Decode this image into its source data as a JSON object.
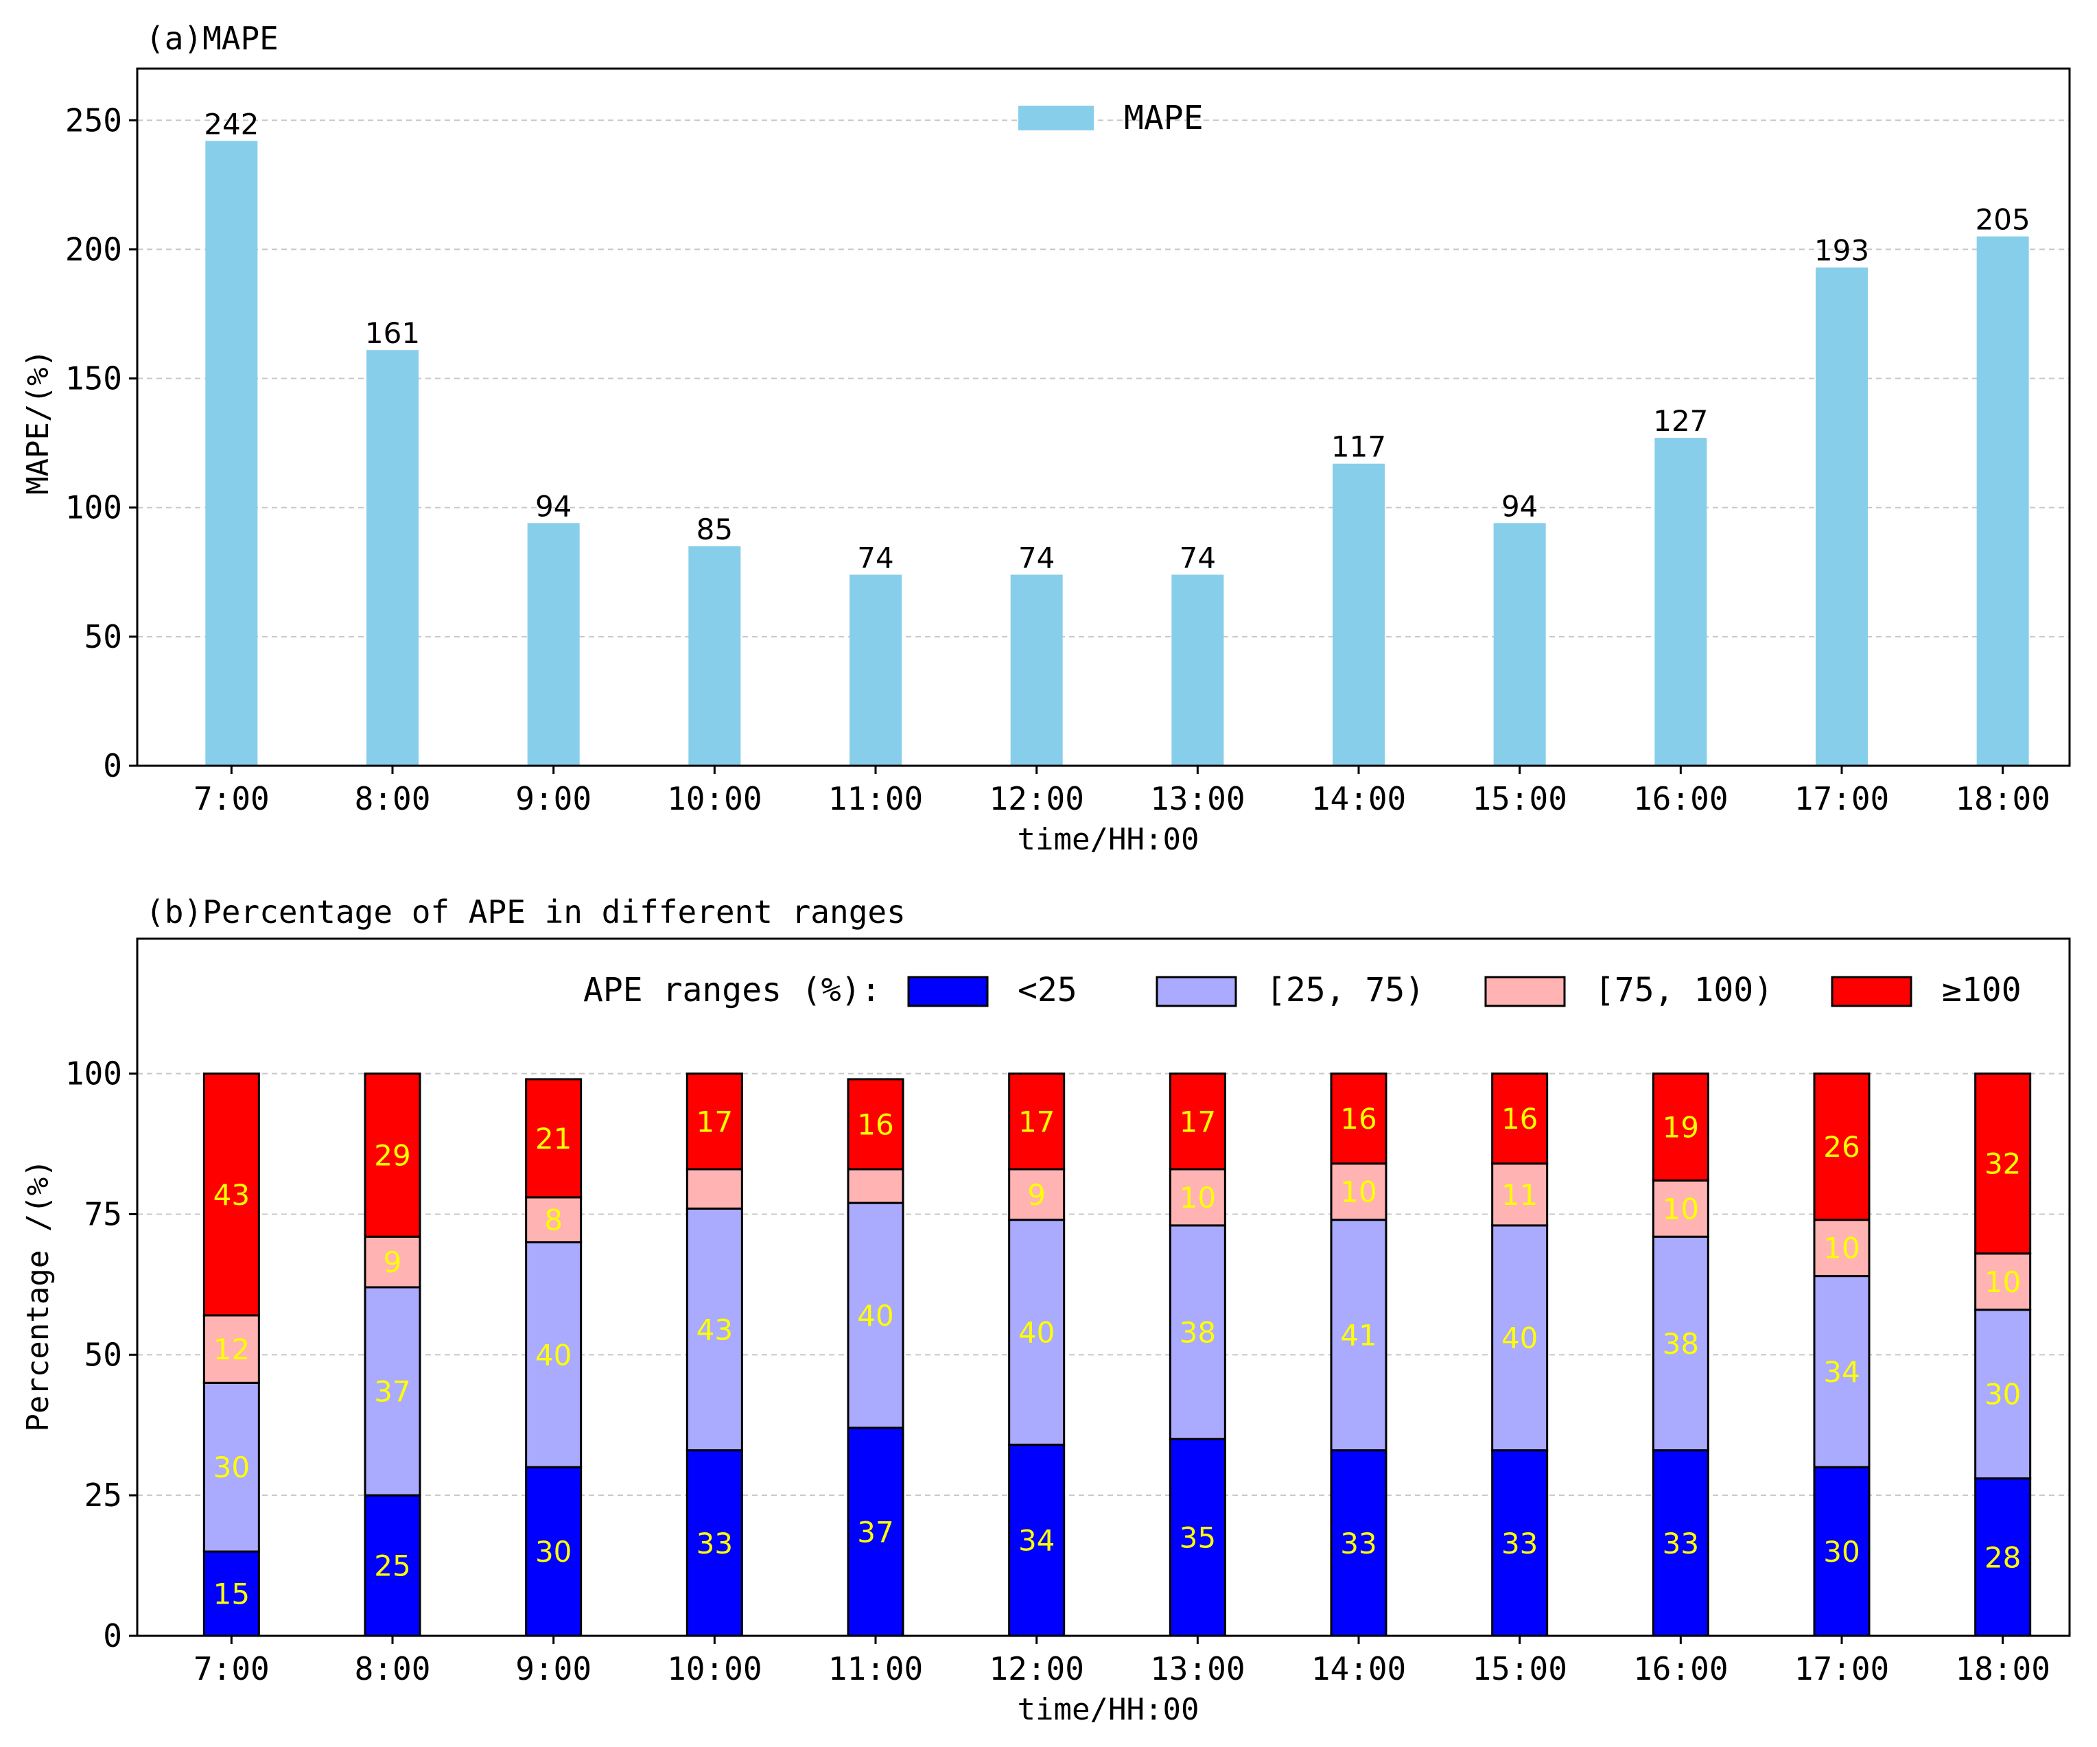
{
  "chart_data": [
    {
      "type": "bar",
      "title": "(a)MAPE",
      "categories": [
        "7:00",
        "8:00",
        "9:00",
        "10:00",
        "11:00",
        "12:00",
        "13:00",
        "14:00",
        "15:00",
        "16:00",
        "17:00",
        "18:00"
      ],
      "values": [
        242,
        161,
        94,
        85,
        74,
        74,
        74,
        117,
        94,
        127,
        193,
        205
      ],
      "value_labels": [
        "242",
        "161",
        "94",
        "85",
        "74",
        "74",
        "74",
        "117",
        "94",
        "127",
        "193",
        "205"
      ],
      "xlabel": "time/HH:00",
      "ylabel": "MAPE/(%)",
      "ylim": [
        0,
        270
      ],
      "yticks": [
        "0",
        "50",
        "100",
        "150",
        "200",
        "250"
      ],
      "legend": {
        "entries": [
          "MAPE"
        ],
        "position": "top-center"
      },
      "colors": {
        "bar": "#87ceeb"
      },
      "grid": true
    },
    {
      "type": "bar",
      "stacked": true,
      "title": "(b)Percentage of APE in different ranges",
      "categories": [
        "7:00",
        "8:00",
        "9:00",
        "10:00",
        "11:00",
        "12:00",
        "13:00",
        "14:00",
        "15:00",
        "16:00",
        "17:00",
        "18:00"
      ],
      "series": [
        {
          "name": "<25",
          "color": "#0000ff",
          "values": [
            15,
            25,
            30,
            33,
            37,
            34,
            35,
            33,
            33,
            33,
            30,
            28
          ]
        },
        {
          "name": "[25, 75)",
          "color": "#aaaaff",
          "values": [
            30,
            37,
            40,
            43,
            40,
            40,
            38,
            41,
            40,
            38,
            34,
            30
          ]
        },
        {
          "name": "[75, 100)",
          "color": "#ffb3b3",
          "values": [
            12,
            9,
            8,
            7,
            6,
            9,
            10,
            10,
            11,
            10,
            10,
            10
          ]
        },
        {
          "name": "≥100",
          "color": "#ff0000",
          "values": [
            43,
            29,
            21,
            17,
            16,
            17,
            17,
            16,
            16,
            19,
            26,
            32
          ]
        }
      ],
      "segment_labels": [
        [
          "15",
          "25",
          "30",
          "33",
          "37",
          "34",
          "35",
          "33",
          "33",
          "33",
          "30",
          "28"
        ],
        [
          "30",
          "37",
          "40",
          "43",
          "40",
          "40",
          "38",
          "41",
          "40",
          "38",
          "34",
          "30"
        ],
        [
          "12",
          "9",
          "8",
          "",
          "",
          "9",
          "10",
          "10",
          "11",
          "10",
          "10",
          "10"
        ],
        [
          "43",
          "29",
          "21",
          "17",
          "16",
          "17",
          "17",
          "16",
          "16",
          "19",
          "26",
          "32"
        ]
      ],
      "xlabel": "time/HH:00",
      "ylabel": "Percentage /(%)",
      "ylim": [
        0,
        124
      ],
      "yticks": [
        "0",
        "25",
        "50",
        "75",
        "100"
      ],
      "legend": {
        "title": "APE ranges (%):",
        "entries": [
          "<25",
          "[25, 75)",
          "[75, 100)",
          "≥100"
        ],
        "position": "top"
      },
      "grid": true
    }
  ]
}
